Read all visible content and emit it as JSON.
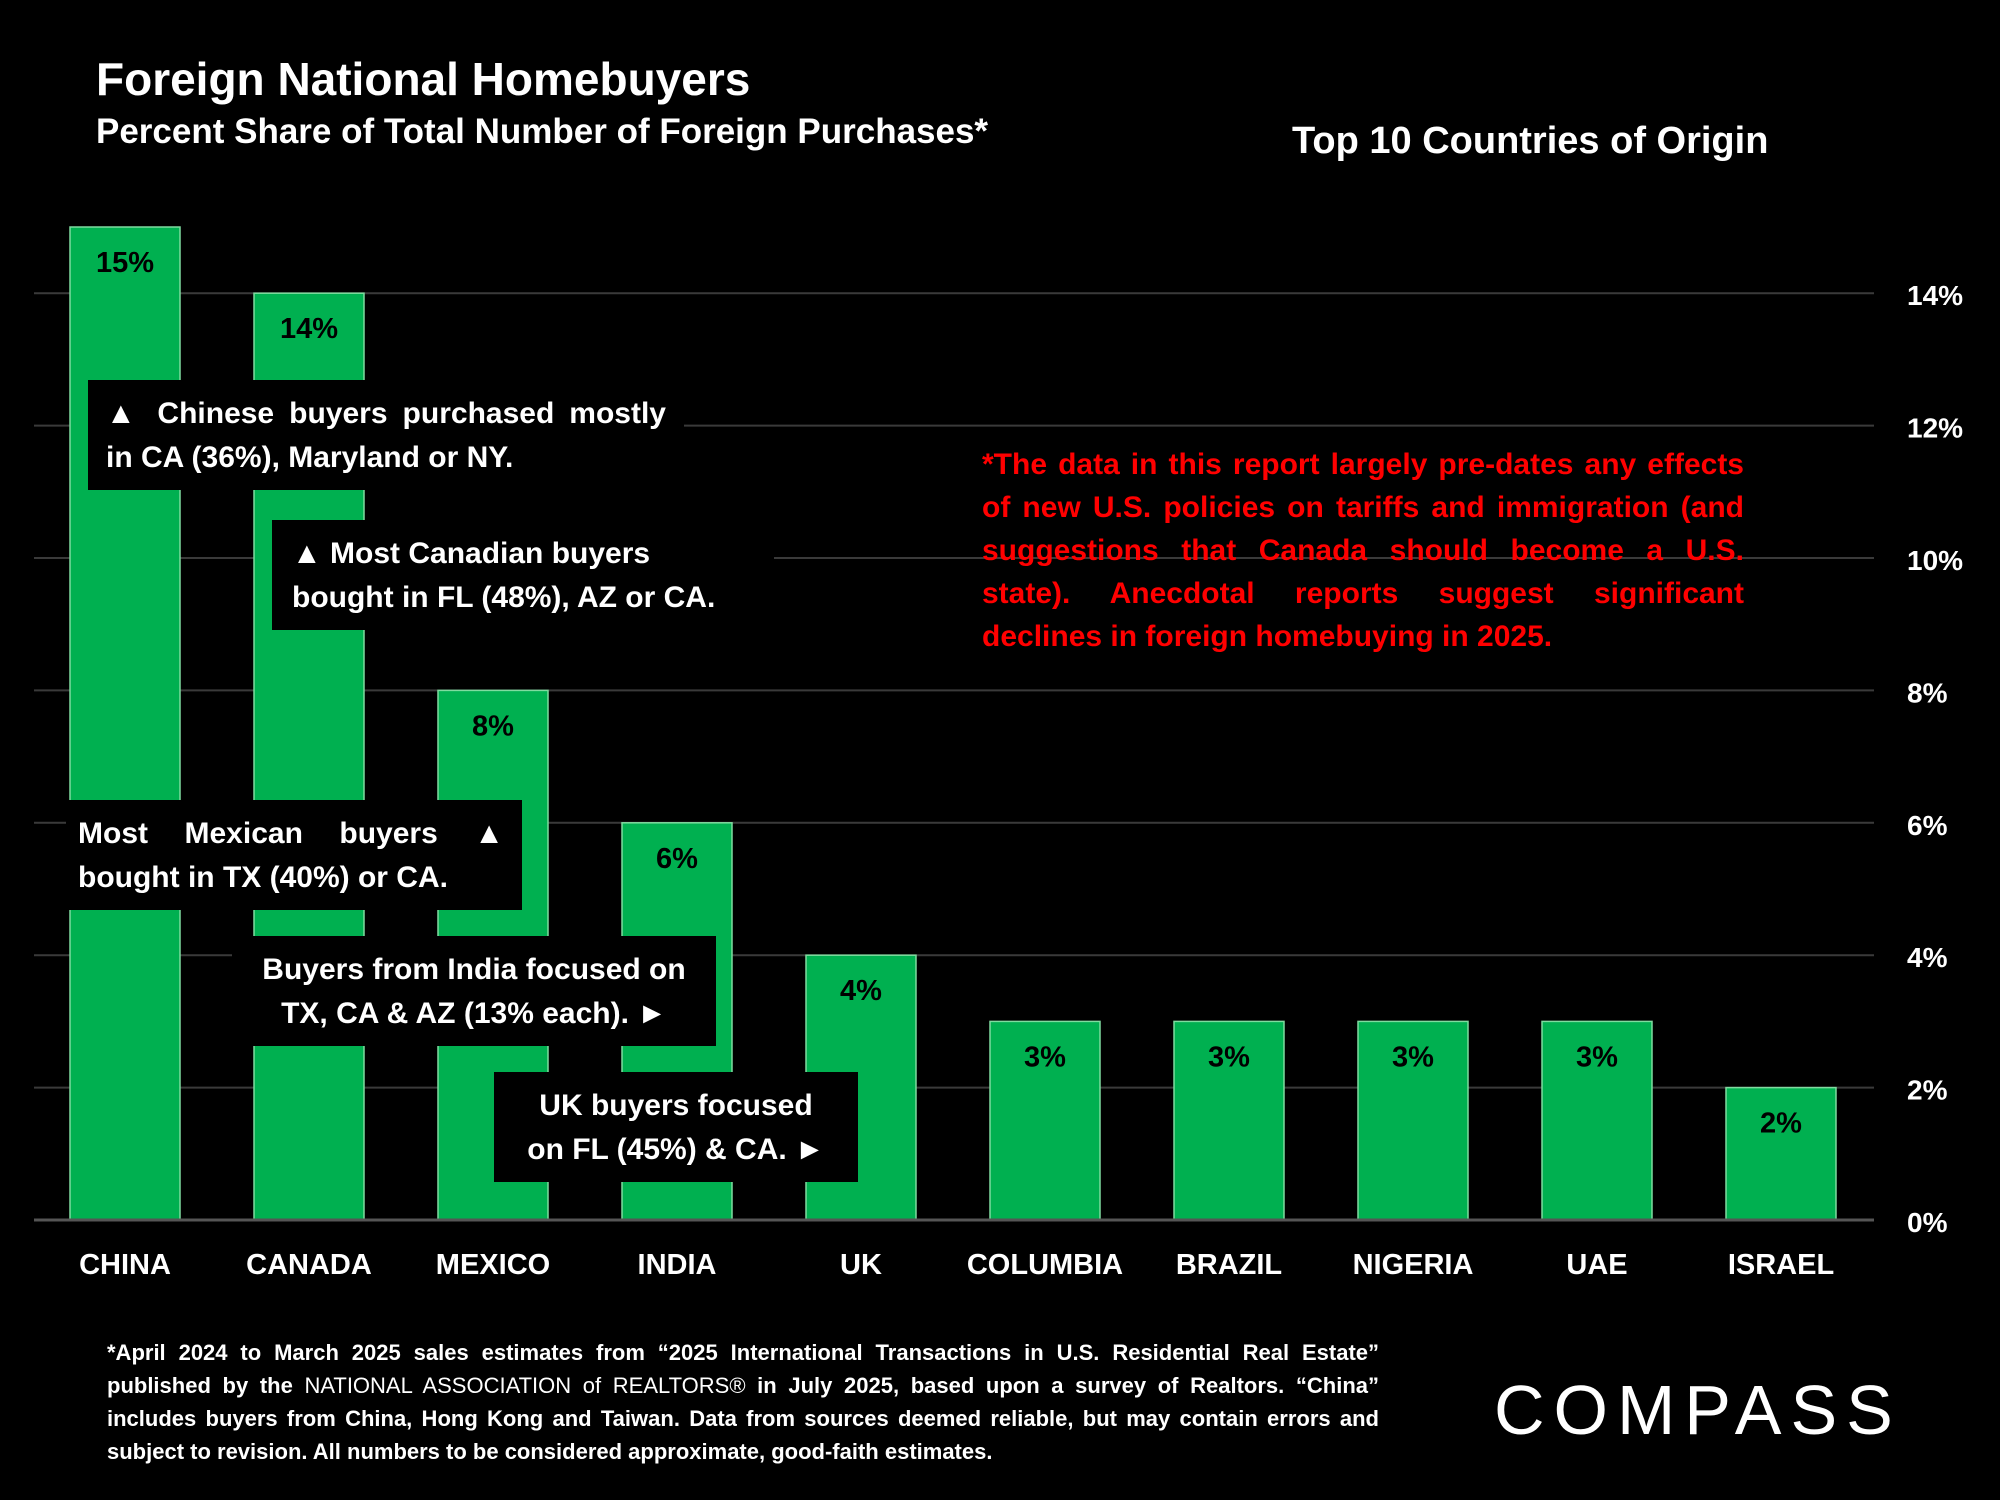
{
  "header": {
    "title": "Foreign National Homebuyers",
    "subtitle": "Percent Share of Total Number of Foreign Purchases*",
    "right_title": "Top 10 Countries of Origin"
  },
  "chart_data": {
    "type": "bar",
    "title": "Foreign National Homebuyers",
    "subtitle": "Percent Share of Total Number of Foreign Purchases*",
    "categories": [
      "CHINA",
      "CANADA",
      "MEXICO",
      "INDIA",
      "UK",
      "COLUMBIA",
      "BRAZIL",
      "NIGERIA",
      "UAE",
      "ISRAEL"
    ],
    "values": [
      15,
      14,
      8,
      6,
      4,
      3,
      3,
      3,
      3,
      2
    ],
    "data_labels": [
      "15%",
      "14%",
      "8%",
      "6%",
      "4%",
      "3%",
      "3%",
      "3%",
      "3%",
      "2%"
    ],
    "y_ticks": [
      0,
      2,
      4,
      6,
      8,
      10,
      12,
      14
    ],
    "y_tick_labels": [
      "0%",
      "2%",
      "4%",
      "6%",
      "8%",
      "10%",
      "12%",
      "14%"
    ],
    "ylim": [
      0,
      15
    ],
    "y_axis_side": "right",
    "grid": true,
    "bar_color": "#00b050"
  },
  "callouts": {
    "china": [
      "▲ Chinese buyers purchased mostly",
      "in CA (36%), Maryland or NY."
    ],
    "canada": [
      "▲ Most Canadian buyers",
      "bought in FL (48%), AZ or CA."
    ],
    "mexico": [
      "Most Mexican buyers ▲",
      "bought in TX (40%)  or CA."
    ],
    "india": [
      "Buyers from India focused on",
      "TX, CA & AZ (13% each). ►"
    ],
    "uk": [
      "UK buyers focused",
      "on FL (45%) & CA. ►"
    ]
  },
  "note": "*The data in this report largely pre-dates any effects of new U.S. policies on tariffs and immigration (and suggestions that Canada should become a U.S. state). Anecdotal reports suggest significant declines in foreign homebuying in 2025.",
  "footnote": {
    "part1": "*April 2024 to March 2025 sales estimates from “2025 International Transactions in U.S. Residential Real Estate” published by the ",
    "nar": "NATIONAL ASSOCIATION of REALTORS®",
    "part2": " in July 2025, based upon a survey of Realtors. “China” includes buyers from China, Hong Kong and Taiwan. Data from sources deemed reliable, but may contain errors and subject to revision.  All numbers to be considered approximate, good-faith estimates."
  },
  "logo": "COMPASS",
  "colors": {
    "bar": "#00b050",
    "note": "#ff0000",
    "background": "#000000"
  }
}
